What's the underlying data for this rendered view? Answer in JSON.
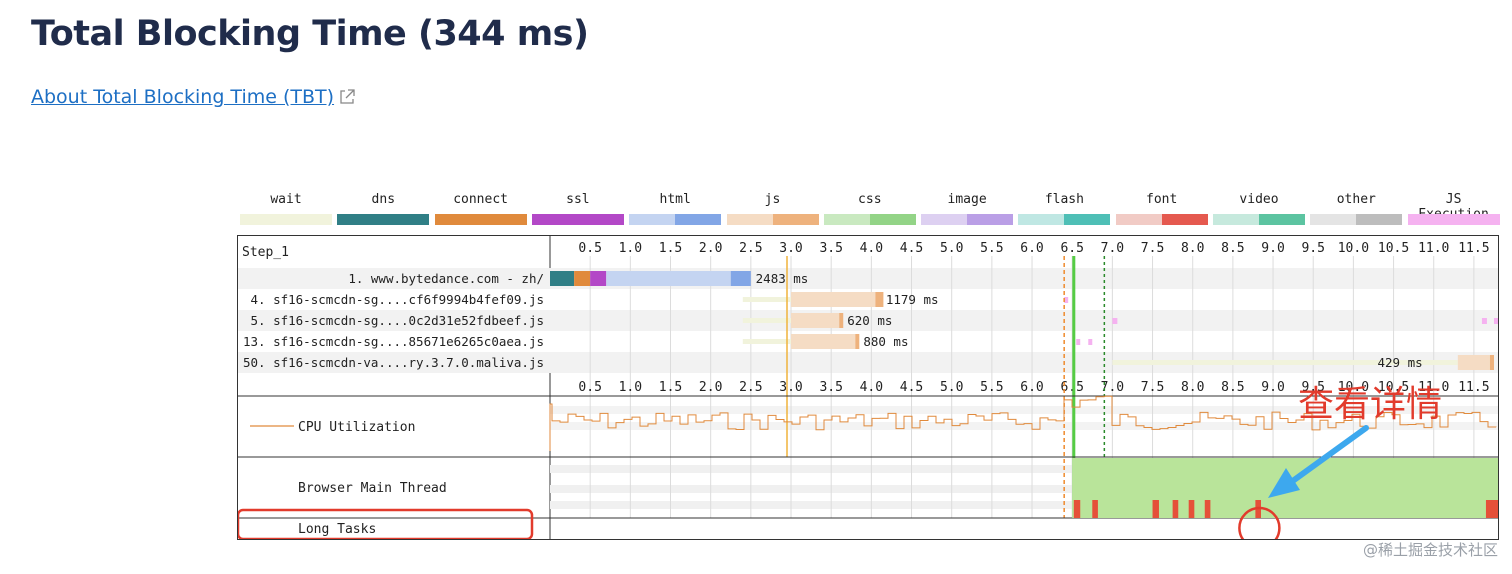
{
  "page": {
    "title": "Total Blocking Time (344 ms)",
    "about_link": "About Total Blocking Time (TBT)",
    "watermark": "@稀土掘金技术社区"
  },
  "legend": [
    {
      "label": "wait",
      "color": "#f1f3dc",
      "color2": "#f1f3dc"
    },
    {
      "label": "dns",
      "color": "#307f86",
      "color2": "#307f86"
    },
    {
      "label": "connect",
      "color": "#e08a3c",
      "color2": "#e08a3c"
    },
    {
      "label": "ssl",
      "color": "#b348c7",
      "color2": "#b348c7"
    },
    {
      "label": "html",
      "color": "#c4d4f1",
      "color2": "#82a6e6"
    },
    {
      "label": "js",
      "color": "#f5dcc4",
      "color2": "#eeb27d"
    },
    {
      "label": "css",
      "color": "#c9e9c0",
      "color2": "#93d487"
    },
    {
      "label": "image",
      "color": "#ddd0f1",
      "color2": "#ba9fe6"
    },
    {
      "label": "flash",
      "color": "#bfe7e3",
      "color2": "#4ebfb6"
    },
    {
      "label": "font",
      "color": "#f1cbc5",
      "color2": "#e5594f"
    },
    {
      "label": "video",
      "color": "#c6e9dd",
      "color2": "#5cc4a1"
    },
    {
      "label": "other",
      "color": "#e4e4e4",
      "color2": "#bdbdbd"
    },
    {
      "label": "JS Execution",
      "color": "#f5b2f0",
      "color2": "#f5b2f0"
    }
  ],
  "waterfall": {
    "step_label": "Step_1",
    "ticks": [
      "0.5",
      "1.0",
      "1.5",
      "2.0",
      "2.5",
      "3.0",
      "3.5",
      "4.0",
      "4.5",
      "5.0",
      "5.5",
      "6.0",
      "6.5",
      "7.0",
      "7.5",
      "8.0",
      "8.5",
      "9.0",
      "9.5",
      "10.0",
      "10.5",
      "11.0",
      "11.5"
    ],
    "requests": [
      {
        "label": "1. www.bytedance.com - zh/",
        "timing": "2483 ms"
      },
      {
        "label": "4. sf16-scmcdn-sg....cf6f9994b4fef09.js",
        "timing": "1179 ms"
      },
      {
        "label": "5. sf16-scmcdn-sg....0c2d31e52fdbeef.js",
        "timing": "620 ms"
      },
      {
        "label": "13. sf16-scmcdn-sg....85671e6265c0aea.js",
        "timing": "880 ms"
      },
      {
        "label": "50. sf16-scmcdn-va....ry.3.7.0.maliva.js",
        "timing": "429 ms"
      }
    ],
    "rows": {
      "cpu": "CPU Utilization",
      "main_thread": "Browser Main Thread",
      "long_tasks": "Long Tasks"
    },
    "annotation": "查看详情",
    "annotation_color": "#e23b2c"
  }
}
